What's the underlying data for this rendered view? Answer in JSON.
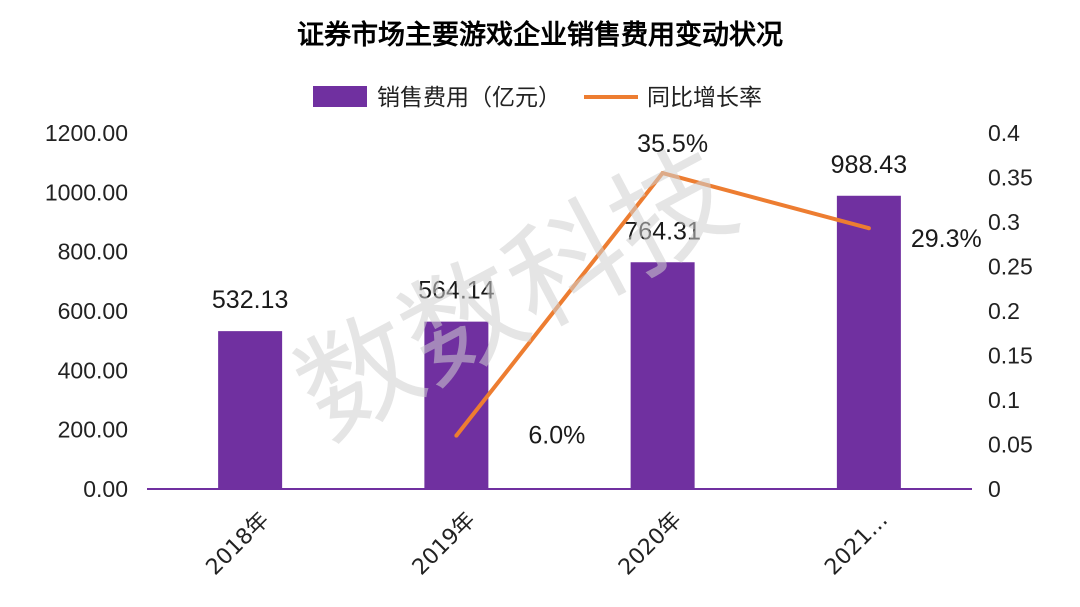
{
  "chart_data": {
    "type": "bar",
    "title": "证券市场主要游戏企业销售费用变动状况",
    "watermark": "数数科技",
    "categories": [
      "2018年",
      "2019年",
      "2020年",
      "2021…"
    ],
    "bar_series": {
      "name": "销售费用（亿元）",
      "color": "#7030a0",
      "values": [
        532.13,
        564.14,
        764.31,
        988.43
      ],
      "data_labels": [
        "532.13",
        "564.14",
        "764.31",
        "988.43"
      ]
    },
    "line_series": {
      "name": "同比增长率",
      "color": "#ed7d31",
      "values": [
        null,
        0.06,
        0.355,
        0.293
      ],
      "data_labels": [
        "",
        "6.0%",
        "35.5%",
        "29.3%"
      ]
    },
    "y_left": {
      "min": 0,
      "max": 1200,
      "ticks": [
        "0.00",
        "200.00",
        "400.00",
        "600.00",
        "800.00",
        "1000.00",
        "1200.00"
      ]
    },
    "y_right": {
      "min": 0,
      "max": 0.4,
      "ticks": [
        "0",
        "0.05",
        "0.1",
        "0.15",
        "0.2",
        "0.25",
        "0.3",
        "0.35",
        "0.4"
      ]
    },
    "legend_position": "top",
    "grid": false
  }
}
